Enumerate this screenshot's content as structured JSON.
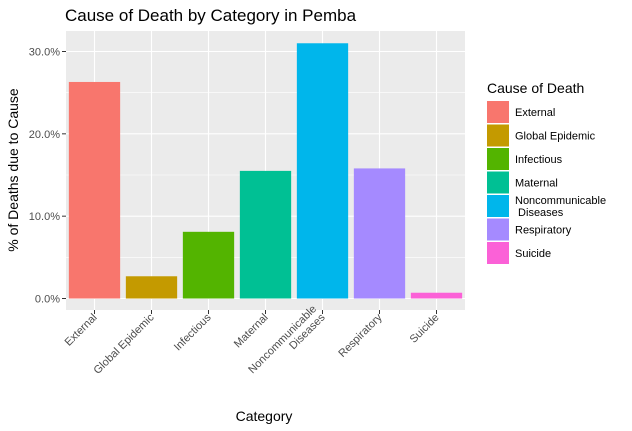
{
  "chart_data": {
    "type": "bar",
    "title": "Cause of Death by Category in Pemba",
    "xlabel": "Category",
    "ylabel": "% of Deaths due to Cause",
    "ylim": [
      0,
      32.5
    ],
    "yticks": [
      0,
      10,
      20,
      30
    ],
    "ytick_labels": [
      "0.0%",
      "10.0%",
      "20.0%",
      "30.0%"
    ],
    "grid": true,
    "legend_position": "right",
    "legend_title": "Cause of Death",
    "categories": [
      [
        "External"
      ],
      [
        "Global Epidemic"
      ],
      [
        "Infectious"
      ],
      [
        "Maternal"
      ],
      [
        "Noncommunicable",
        "Diseases"
      ],
      [
        "Respiratory"
      ],
      [
        "Suicide"
      ]
    ],
    "legend_labels": [
      [
        "External"
      ],
      [
        "Global Epidemic"
      ],
      [
        "Infectious"
      ],
      [
        "Maternal"
      ],
      [
        "Noncommunicable",
        " Diseases"
      ],
      [
        "Respiratory"
      ],
      [
        "Suicide"
      ]
    ],
    "values": [
      26.3,
      2.7,
      8.1,
      15.5,
      31.0,
      15.8,
      0.7
    ],
    "colors": [
      "#F8766D",
      "#C49A00",
      "#53B400",
      "#00C094",
      "#00B6EB",
      "#A58AFF",
      "#FB61D7"
    ],
    "panel_background": "#EBEBEB",
    "grid_color": "#FFFFFF"
  }
}
